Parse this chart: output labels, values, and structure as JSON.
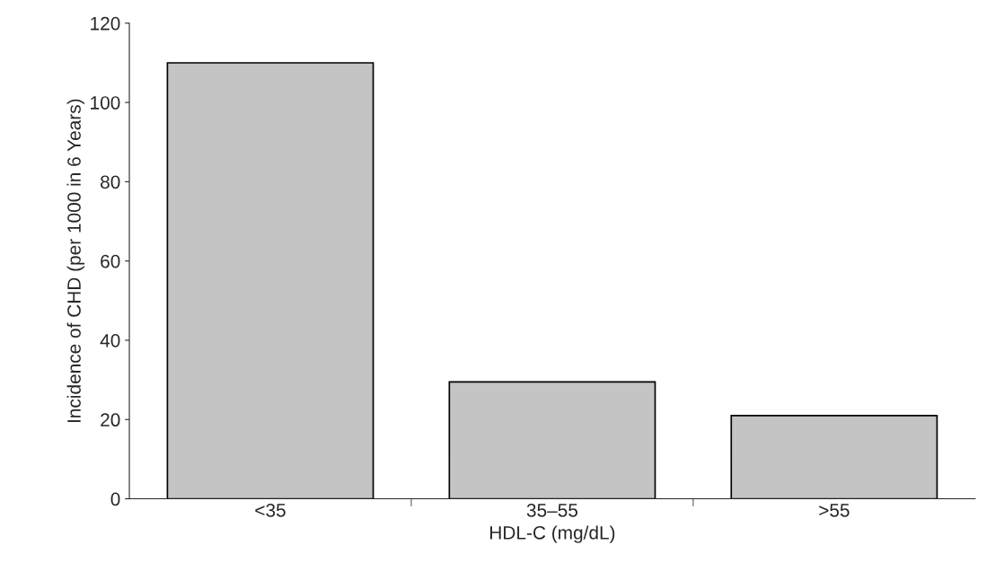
{
  "chart_data": {
    "type": "bar",
    "xlabel": "HDL-C (mg/dL)",
    "ylabel": "Incidence of CHD (per 1000 in 6 Years)",
    "categories": [
      "<35",
      "35–55",
      ">55"
    ],
    "values": [
      110,
      29.5,
      21
    ],
    "color": "#c4c4c4",
    "ylim": [
      0,
      120
    ],
    "yticks": [
      0,
      20,
      40,
      60,
      80,
      100,
      120
    ],
    "grid": false,
    "legend": false
  }
}
